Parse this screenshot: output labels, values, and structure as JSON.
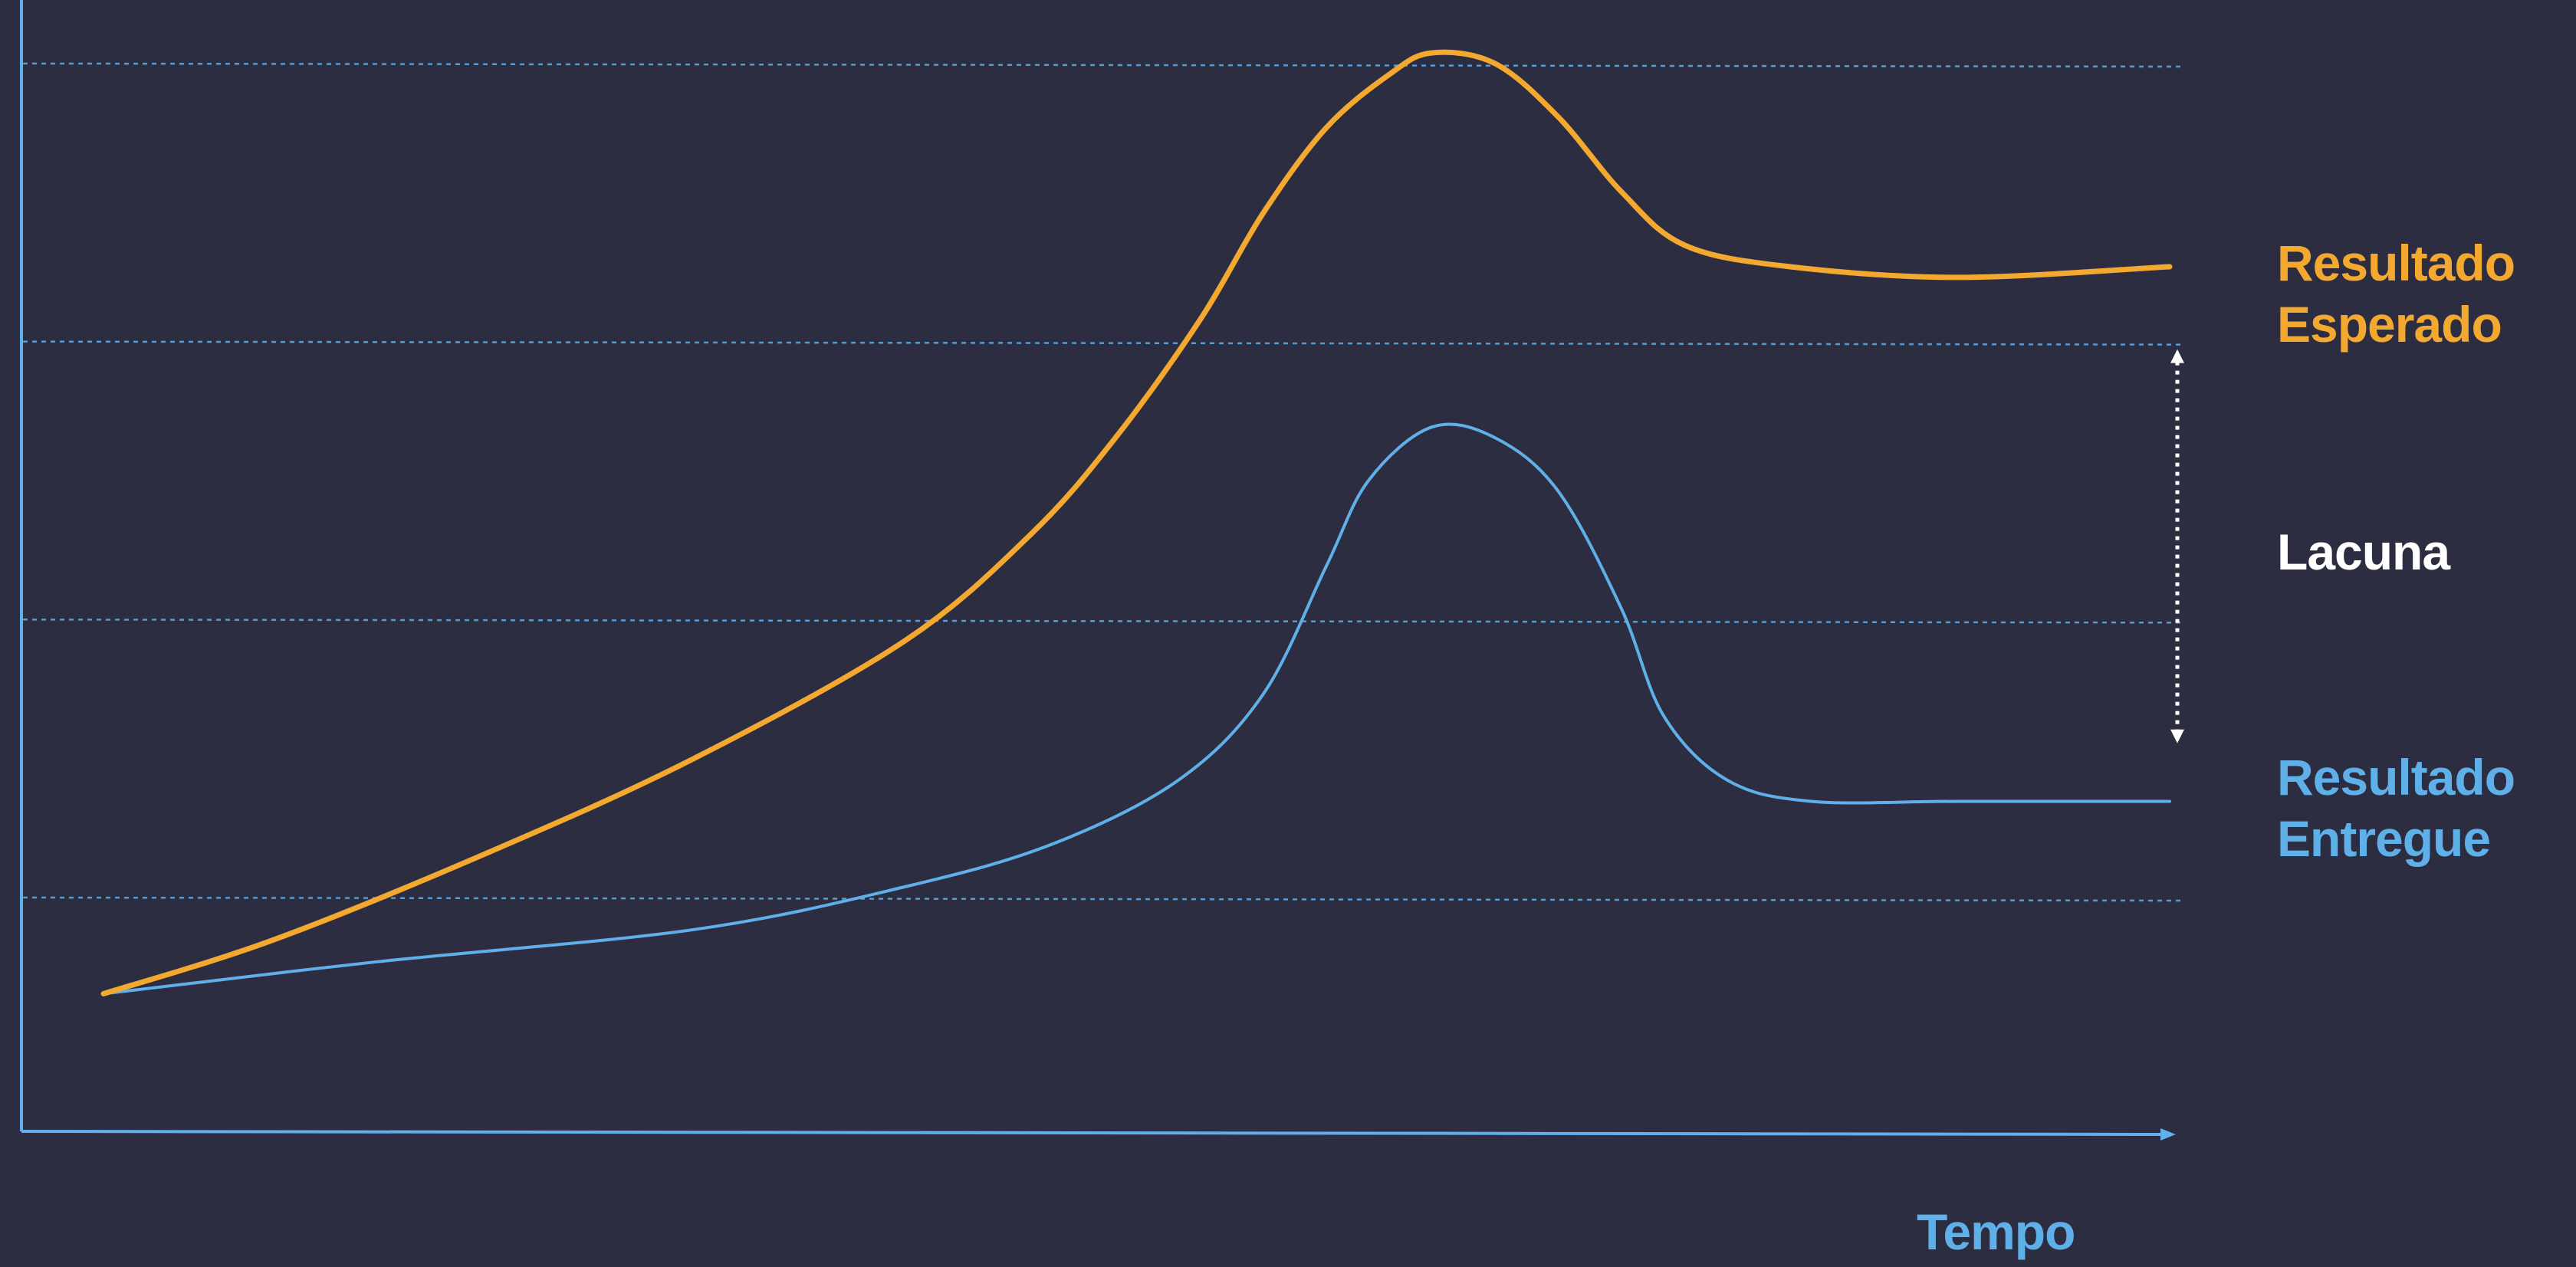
{
  "colors": {
    "background": "#2d2d42",
    "expected": "#f3a82f",
    "delivered": "#5fb0e8",
    "gap": "#ffffff",
    "axis": "#5fb0e8",
    "grid": "#5fb0e8"
  },
  "chart_data": {
    "type": "line",
    "title": "",
    "xlabel": "Tempo",
    "ylabel": "",
    "grid": "horizontal dotted lines",
    "axes_numbered": false,
    "series": [
      {
        "name": "Resultado Esperado",
        "label_lines": [
          "Resultado",
          "Esperado"
        ],
        "color_key": "expected",
        "points": [
          [
            0.02,
            0.11
          ],
          [
            0.1,
            0.16
          ],
          [
            0.2,
            0.24
          ],
          [
            0.3,
            0.33
          ],
          [
            0.4,
            0.44
          ],
          [
            0.46,
            0.54
          ],
          [
            0.5,
            0.63
          ],
          [
            0.54,
            0.74
          ],
          [
            0.57,
            0.84
          ],
          [
            0.6,
            0.92
          ],
          [
            0.63,
            0.97
          ],
          [
            0.65,
            0.99
          ],
          [
            0.68,
            0.98
          ],
          [
            0.71,
            0.93
          ],
          [
            0.74,
            0.86
          ],
          [
            0.77,
            0.81
          ],
          [
            0.82,
            0.79
          ],
          [
            0.9,
            0.78
          ],
          [
            1.0,
            0.79
          ]
        ]
      },
      {
        "name": "Resultado Entregue",
        "label_lines": [
          "Resultado",
          "Entregue"
        ],
        "color_key": "delivered",
        "points": [
          [
            0.02,
            0.11
          ],
          [
            0.15,
            0.14
          ],
          [
            0.3,
            0.17
          ],
          [
            0.4,
            0.21
          ],
          [
            0.47,
            0.25
          ],
          [
            0.53,
            0.31
          ],
          [
            0.57,
            0.39
          ],
          [
            0.6,
            0.51
          ],
          [
            0.62,
            0.59
          ],
          [
            0.65,
            0.64
          ],
          [
            0.68,
            0.63
          ],
          [
            0.71,
            0.58
          ],
          [
            0.74,
            0.47
          ],
          [
            0.76,
            0.37
          ],
          [
            0.79,
            0.31
          ],
          [
            0.83,
            0.29
          ],
          [
            0.9,
            0.29
          ],
          [
            1.0,
            0.29
          ]
        ]
      }
    ],
    "gridlines_y": [
      0.2,
      0.46,
      0.72,
      0.98
    ],
    "annotation": {
      "label": "Lacuna",
      "from_y": 0.72,
      "to_y": 0.34
    }
  }
}
